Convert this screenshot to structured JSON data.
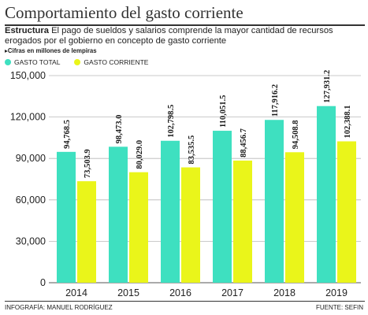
{
  "header": {
    "title": "Comportamiento del gasto corriente",
    "desc_bold": "Estructura",
    "desc_text": " El pago de sueldos y salarios comprende la mayor cantidad de recursos erogados por el gobierno en concepto de gasto corriente",
    "units_note": "Cifras en millones de lempiras"
  },
  "footer": {
    "credit": "INFOGRAFÍA: MANUEL RODRÍGUEZ",
    "source": "FUENTE: SEFIN"
  },
  "chart_data": {
    "type": "bar",
    "categories": [
      "2014",
      "2015",
      "2016",
      "2017",
      "2018",
      "2019"
    ],
    "series": [
      {
        "name": "GASTO TOTAL",
        "color": "#3ee0c0",
        "values": [
          94768.5,
          98473.0,
          102798.5,
          110051.5,
          117916.2,
          127931.2
        ],
        "labels": [
          "94,768.5",
          "98,473.0",
          "102,798.5",
          "110,051.5",
          "117,916.2",
          "127,931.2"
        ]
      },
      {
        "name": "GASTO CORRIENTE",
        "color": "#eaf51a",
        "values": [
          73503.9,
          80029.0,
          83535.5,
          88456.7,
          94508.8,
          102388.1
        ],
        "labels": [
          "73,503.9",
          "80,029.0",
          "83,535.5",
          "88,456.7",
          "94,508.8",
          "102,388.1"
        ]
      }
    ],
    "ylim": [
      0,
      150000
    ],
    "yticks": [
      0,
      30000,
      60000,
      90000,
      120000,
      150000
    ],
    "ytick_labels": [
      "0",
      "30,000",
      "60,000",
      "90,000",
      "120,000",
      "150,000"
    ],
    "grid": true,
    "legend_position": "top-left"
  }
}
